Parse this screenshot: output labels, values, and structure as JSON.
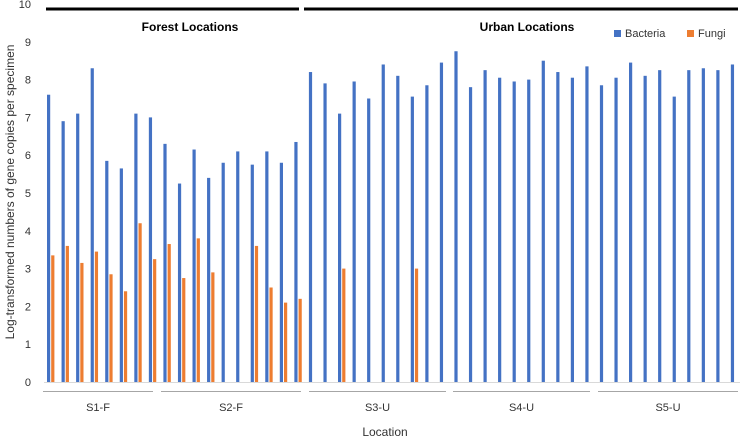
{
  "chart_data": {
    "type": "bar",
    "title": "",
    "xlabel": "Location",
    "ylabel": "Log-transformed numbers of gene copies per specimen",
    "ylim": [
      0,
      10
    ],
    "yticks": [
      0,
      1,
      2,
      3,
      4,
      5,
      6,
      7,
      8,
      9,
      10
    ],
    "grid": false,
    "legend_position": "top-right",
    "location_groups": [
      "S1-F",
      "S2-F",
      "S3-U",
      "S4-U",
      "S5-U"
    ],
    "site_type_headers": [
      "Forest Locations",
      "Urban Locations"
    ],
    "series": [
      {
        "name": "Bacteria",
        "color": "#4472C4",
        "values": [
          7.6,
          6.9,
          7.1,
          8.3,
          5.85,
          5.65,
          7.1,
          7.0,
          6.3,
          5.25,
          6.15,
          5.4,
          5.8,
          6.1,
          5.75,
          6.1,
          5.8,
          6.35,
          8.2,
          7.9,
          7.1,
          7.95,
          7.5,
          8.4,
          8.1,
          7.55,
          7.85,
          8.45,
          8.75,
          7.8,
          8.25,
          8.05,
          7.95,
          8.0,
          8.5,
          8.2,
          8.05,
          8.35,
          7.85,
          8.05,
          8.45,
          8.1,
          8.25,
          7.55,
          8.25,
          8.3,
          8.25,
          8.4
        ]
      },
      {
        "name": "Fungi",
        "color": "#ED7D31",
        "values": [
          3.35,
          3.6,
          3.15,
          3.45,
          2.85,
          2.4,
          4.2,
          3.25,
          3.65,
          2.75,
          3.8,
          2.9,
          null,
          null,
          3.6,
          2.5,
          2.1,
          2.2,
          null,
          null,
          3.0,
          null,
          null,
          null,
          null,
          3.0,
          null,
          null,
          null,
          null,
          null,
          null,
          null,
          null,
          null,
          null,
          null,
          null,
          null,
          null,
          null,
          null,
          null,
          null,
          null,
          null,
          null,
          null
        ]
      }
    ]
  }
}
